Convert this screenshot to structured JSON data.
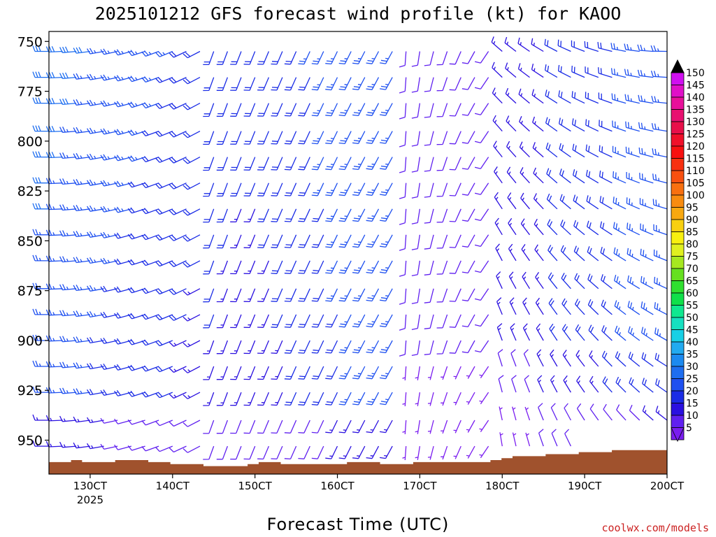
{
  "chart_data": {
    "type": "wind-barb-time-height",
    "title": "2025101212 GFS forecast wind profile (kt) for KAOO",
    "xlabel": "Forecast Time (UTC)",
    "x_ticks": [
      "130CT",
      "140CT",
      "150CT",
      "160CT",
      "170CT",
      "180CT",
      "190CT",
      "200CT"
    ],
    "x_year_label": "2025",
    "x_range_days": [
      12.5,
      20.0
    ],
    "y_ticks": [
      "750",
      "775",
      "800",
      "825",
      "850",
      "875",
      "900",
      "925",
      "950"
    ],
    "y_unit": "hPa",
    "y_range_hpa": [
      745,
      967
    ],
    "levels_hpa": [
      755,
      768,
      781,
      795,
      808,
      821,
      834,
      847,
      860,
      874,
      887,
      900,
      913,
      926,
      940,
      953
    ],
    "times_day": [
      12.5,
      12.667,
      12.833,
      13.0,
      13.167,
      13.333,
      13.5,
      13.667,
      13.833,
      14.0,
      14.167,
      14.333,
      14.5,
      14.667,
      14.833,
      15.0,
      15.167,
      15.333,
      15.5,
      15.667,
      15.833,
      16.0,
      16.167,
      16.333,
      16.5,
      16.667,
      16.833,
      17.0,
      17.167,
      17.333,
      17.5,
      17.667,
      17.833,
      18.0,
      18.167,
      18.333,
      18.5,
      18.667,
      18.833,
      19.0,
      19.167,
      19.333,
      19.5,
      19.667,
      19.833,
      20.0
    ],
    "colorbar": {
      "unit": "kt",
      "labels": [
        "5",
        "10",
        "15",
        "20",
        "25",
        "30",
        "35",
        "40",
        "45",
        "50",
        "55",
        "60",
        "65",
        "70",
        "75",
        "80",
        "85",
        "90",
        "95",
        "100",
        "105",
        "110",
        "115",
        "120",
        "125",
        "130",
        "135",
        "140",
        "145",
        "150"
      ],
      "colors": [
        "#7a1df0",
        "#6020f0",
        "#2a10e0",
        "#1a2ce6",
        "#1e50f0",
        "#1e6ef0",
        "#1c8af0",
        "#22aaf0",
        "#18d0e6",
        "#16e0c0",
        "#10e890",
        "#10e04a",
        "#30e030",
        "#66e020",
        "#a6e820",
        "#e0f020",
        "#f8f010",
        "#f8d010",
        "#f8a810",
        "#f88c10",
        "#f87010",
        "#f85010",
        "#f83010",
        "#f81010",
        "#f0102a",
        "#e8104a",
        "#e81070",
        "#e8109a",
        "#e010c8",
        "#d010f0"
      ]
    },
    "terrain_color": "#a0522d",
    "terrain_surface_hpa": [
      961,
      961,
      960,
      961,
      961,
      961,
      960,
      960,
      960,
      961,
      961,
      962,
      962,
      962,
      963,
      963,
      963,
      963,
      962,
      961,
      961,
      962,
      962,
      962,
      962,
      962,
      962,
      961,
      961,
      961,
      962,
      962,
      962,
      961,
      961,
      961,
      961,
      961,
      961,
      961,
      960,
      959,
      958,
      958,
      958,
      957,
      957,
      957,
      956,
      956,
      956,
      955,
      955,
      955,
      955,
      955
    ]
  },
  "credit": "coolwx.com/models"
}
